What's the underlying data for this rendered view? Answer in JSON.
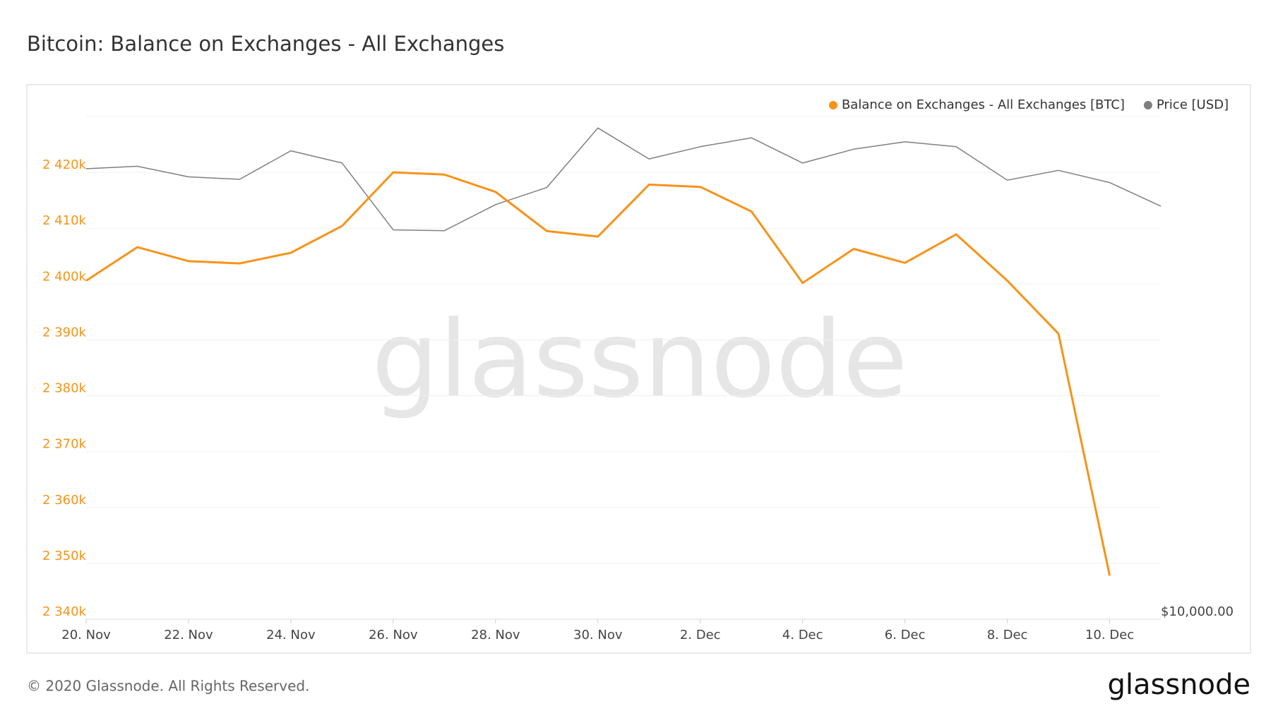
{
  "chart_data": {
    "type": "line",
    "title": "Bitcoin: Balance on Exchanges - All Exchanges",
    "categories": [
      "20. Nov",
      null,
      "22. Nov",
      null,
      "24. Nov",
      null,
      "26. Nov",
      null,
      "28. Nov",
      null,
      "30. Nov",
      null,
      "2. Dec",
      null,
      "4. Dec",
      null,
      "6. Dec",
      null,
      "8. Dec",
      null,
      "10. Dec",
      null
    ],
    "series": [
      {
        "name": "Balance on Exchanges - All Exchanges [BTC]",
        "color": "#f7931a",
        "values": [
          2400600,
          2406600,
          2404100,
          2403700,
          2405600,
          2410400,
          2420000,
          2419600,
          2416500,
          2409500,
          2408500,
          2417800,
          2417400,
          2413000,
          2400200,
          2406300,
          2403800,
          2408900,
          2400600,
          2391100,
          2347800,
          null
        ]
      },
      {
        "name": "Price [USD]",
        "color": "#7f7f7f",
        "axis": "y2",
        "values": [
          18710,
          18775,
          18500,
          18437,
          19182,
          18859,
          17185,
          17166,
          17800,
          18228,
          19801,
          18967,
          19292,
          19533,
          18859,
          19226,
          19424,
          19292,
          18414,
          18668,
          18354,
          17760
        ]
      }
    ],
    "ylim": [
      2340000,
      2430000
    ],
    "yticks": [
      {
        "value": 2340000,
        "label": "2 340k"
      },
      {
        "value": 2350000,
        "label": "2 350k"
      },
      {
        "value": 2360000,
        "label": "2 360k"
      },
      {
        "value": 2370000,
        "label": "2 370k"
      },
      {
        "value": 2380000,
        "label": "2 380k"
      },
      {
        "value": 2390000,
        "label": "2 390k"
      },
      {
        "value": 2400000,
        "label": "2 400k"
      },
      {
        "value": 2410000,
        "label": "2 410k"
      },
      {
        "value": 2420000,
        "label": "2 420k"
      }
    ],
    "y2lim": [
      10000,
      20120
    ],
    "y2log": true,
    "y2ticks": [
      {
        "value": 10000,
        "label": "$10,000.00"
      }
    ],
    "grid": true,
    "legend": "top-right",
    "watermark": "glassnode",
    "footer": "© 2020 Glassnode. All Rights Reserved.",
    "logo": "glassnode"
  }
}
